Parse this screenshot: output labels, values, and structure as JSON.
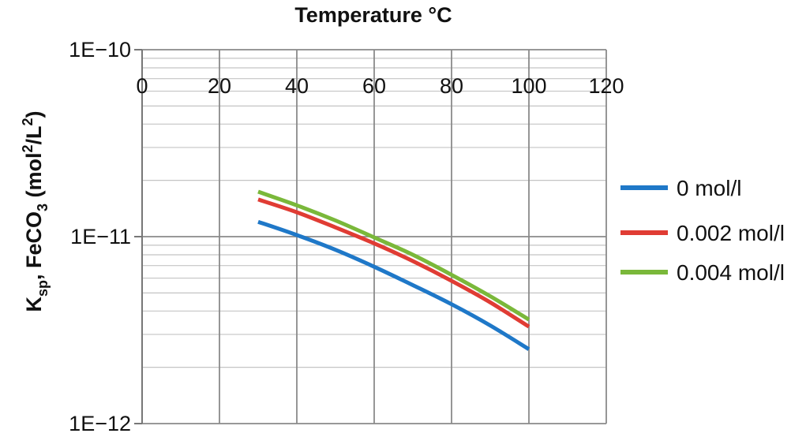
{
  "chart_data": {
    "type": "line",
    "xlabel": "Temperature °C",
    "ylabel_main": "K",
    "ylabel_sub": "sp",
    "ylabel_mid": ", FeCO",
    "ylabel_sub2": "3",
    "ylabel_unit_a": " (mol",
    "ylabel_sup": "2",
    "ylabel_unit_b": "/L",
    "ylabel_sup2": "2",
    "ylabel_unit_c": ")",
    "xlim": [
      0,
      120
    ],
    "ylim": [
      1e-12,
      1e-10
    ],
    "yscale": "log",
    "x_ticks": [
      0,
      20,
      40,
      60,
      80,
      100,
      120
    ],
    "x_tick_labels": [
      "0",
      "20",
      "40",
      "60",
      "80",
      "100",
      "120"
    ],
    "y_ticks": [
      1e-12,
      1e-11,
      1e-10
    ],
    "y_tick_labels": [
      "1E−12",
      "1E−11",
      "1E−10"
    ],
    "grid": true,
    "legend_position": "right",
    "series": [
      {
        "name": "0 mol/l",
        "color": "#1f78c8",
        "x": [
          30,
          40,
          50,
          60,
          70,
          80,
          90,
          100
        ],
        "y": [
          1.2e-11,
          1.02e-11,
          8.5e-12,
          6.9e-12,
          5.5e-12,
          4.35e-12,
          3.35e-12,
          2.5e-12
        ]
      },
      {
        "name": "0.002 mol/l",
        "color": "#e03c34",
        "x": [
          30,
          40,
          50,
          60,
          70,
          80,
          90,
          100
        ],
        "y": [
          1.58e-11,
          1.35e-11,
          1.12e-11,
          9.2e-12,
          7.4e-12,
          5.8e-12,
          4.45e-12,
          3.3e-12
        ]
      },
      {
        "name": "0.004 mol/l",
        "color": "#7ab83a",
        "x": [
          30,
          40,
          50,
          60,
          70,
          80,
          90,
          100
        ],
        "y": [
          1.74e-11,
          1.47e-11,
          1.22e-11,
          9.9e-12,
          8e-12,
          6.25e-12,
          4.8e-12,
          3.6e-12
        ]
      }
    ]
  }
}
